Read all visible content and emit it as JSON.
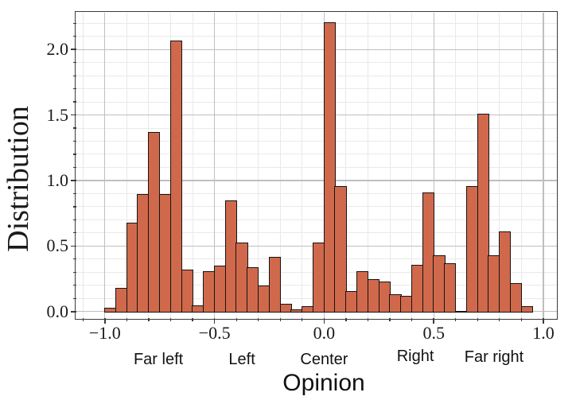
{
  "chart_data": {
    "type": "bar",
    "subtype": "histogram",
    "title": "",
    "xlabel": "Opinion",
    "ylabel": "Distribution",
    "bin_start": -1.0,
    "bin_width": 0.05,
    "values": [
      0.02,
      0.17,
      0.67,
      0.89,
      1.36,
      0.89,
      2.06,
      0.31,
      0.04,
      0.3,
      0.34,
      0.84,
      0.52,
      0.33,
      0.19,
      0.41,
      0.05,
      0.01,
      0.03,
      0.52,
      2.2,
      0.95,
      0.15,
      0.3,
      0.24,
      0.22,
      0.12,
      0.11,
      0.35,
      0.9,
      0.42,
      0.36,
      0.0,
      0.95,
      1.5,
      0.42,
      0.6,
      0.21,
      0.03,
      0.0
    ],
    "xlim": [
      -1.132,
      1.06
    ],
    "ylim": [
      -0.05,
      2.28
    ],
    "xticks": [
      -1.0,
      -0.5,
      0.0,
      0.5,
      1.0
    ],
    "xtick_labels": [
      "−1.0",
      "−0.5",
      "0.0",
      "0.5",
      "1.0"
    ],
    "yticks": [
      0.0,
      0.5,
      1.0,
      1.5,
      2.0
    ],
    "ytick_labels": [
      "0.0",
      "0.5",
      "1.0",
      "1.5",
      "2.0"
    ],
    "minor_step": 0.1,
    "minor_x_range": [
      -1.1,
      1.0
    ],
    "minor_y_range": [
      0.1,
      2.2
    ],
    "grid": "major+minor",
    "legend": "none",
    "annotations": [
      {
        "label": "Far left",
        "x": -0.756,
        "dy": 0
      },
      {
        "label": "Left",
        "x": -0.375,
        "dy": 0
      },
      {
        "label": "Center",
        "x": 0.0,
        "dy": 0
      },
      {
        "label": "Right",
        "x": 0.416,
        "dy": -4
      },
      {
        "label": "Far right",
        "x": 0.775,
        "dy": -3
      }
    ],
    "colors": {
      "bar_fill": "#d0694c",
      "bar_edge": "#141414",
      "spine": "#3b3b3b",
      "grid_major": "#bfbfbf",
      "grid_minor": "#e9e9e9",
      "baseline": "#141414",
      "text": "#1a1a1a",
      "background": "#ffffff"
    }
  }
}
